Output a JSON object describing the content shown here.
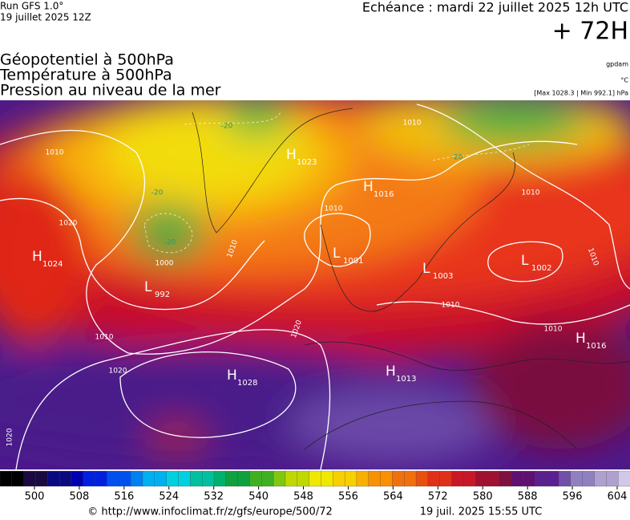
{
  "header": {
    "run": "Run GFS 1.0°",
    "date": "19 juillet 2025 12Z",
    "echeance": "Echéance : mardi 22 juillet 2025 12h UTC",
    "lead": "+ 72H"
  },
  "layers": [
    "Géopotentiel à 500hPa",
    "Température à 500hPa",
    "Pression au niveau de la mer"
  ],
  "units": [
    "gpdam",
    "°C",
    "[Max 1028.3 | Min 992.1] hPa"
  ],
  "centers": [
    {
      "kind": "H",
      "value": 1024
    },
    {
      "kind": "L",
      "value": 992
    },
    {
      "kind": "H",
      "value": 1023
    },
    {
      "kind": "H",
      "value": 1016
    },
    {
      "kind": "L",
      "value": 1001
    },
    {
      "kind": "L",
      "value": 1003
    },
    {
      "kind": "L",
      "value": 1002
    },
    {
      "kind": "H",
      "value": 1016
    },
    {
      "kind": "H",
      "value": 1028
    },
    {
      "kind": "H",
      "value": 1013
    }
  ],
  "isobar_labels": [
    1010,
    1020,
    1010,
    1020,
    1020,
    1020,
    1010,
    1010,
    1010,
    1010,
    1010,
    1010,
    1000,
    1010
  ],
  "isotherm_labels": [
    -20,
    -20,
    -20,
    -20
  ],
  "colorbar": {
    "ticks": [
      500,
      508,
      516,
      524,
      532,
      540,
      548,
      556,
      564,
      572,
      580,
      588,
      596,
      604
    ]
  },
  "footer": {
    "url": "© http://www.infoclimat.fr/z/gfs/europe/500/72",
    "timestamp": "19 juil. 2025 15:55 UTC"
  }
}
